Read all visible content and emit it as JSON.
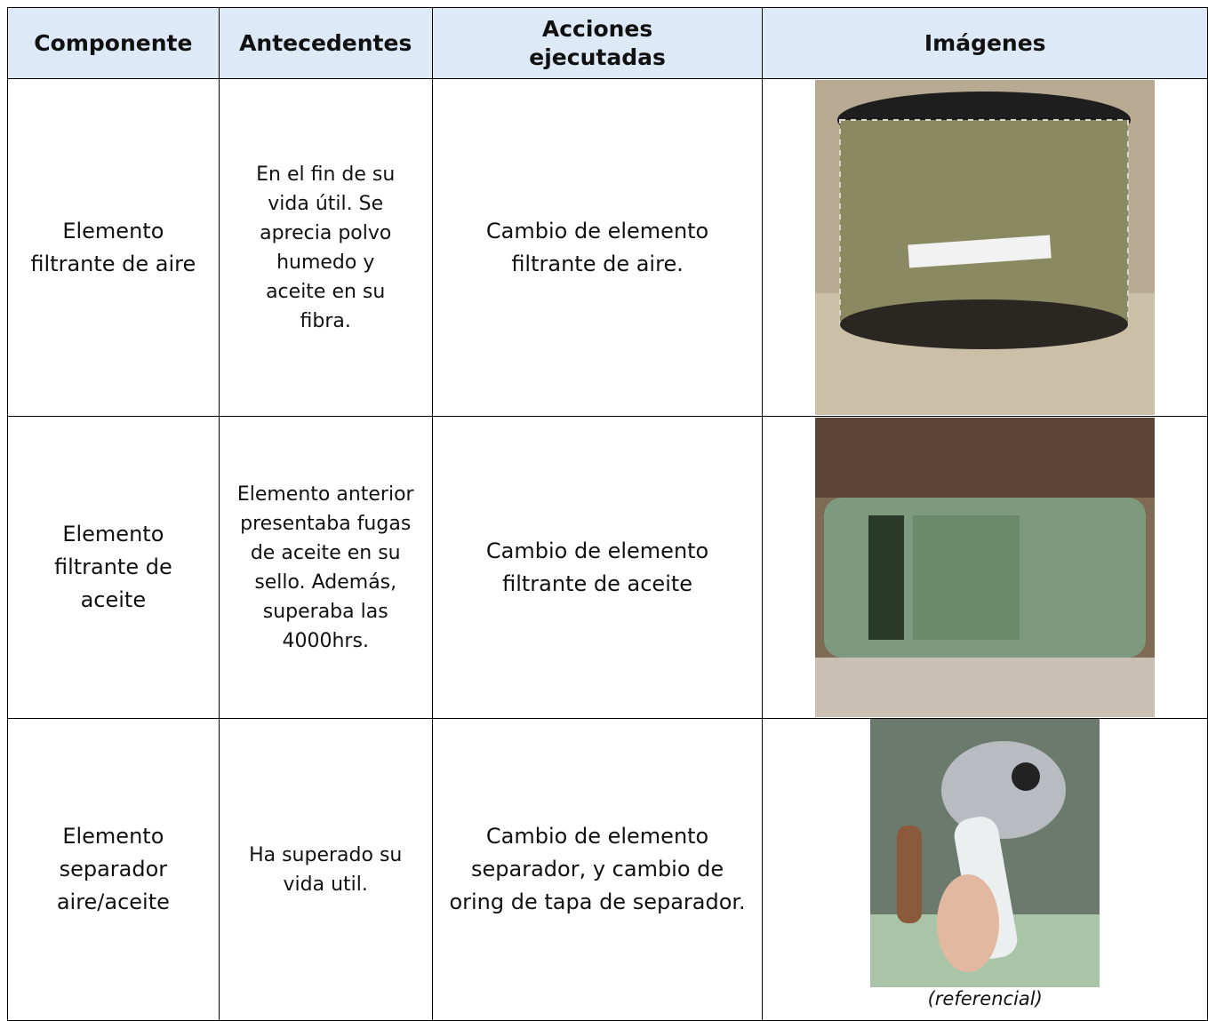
{
  "table": {
    "header": [
      "Componente",
      "Antecedentes",
      "Acciones ejecutadas",
      "Imágenes"
    ],
    "rows": [
      {
        "cells": [
          "Elemento filtrante de aire",
          "En el fin de su vida útil. Se aprecia polvo humedo y aceite en su fibra.",
          "Cambio de elemento filtrante de aire."
        ]
      },
      {
        "cells": [
          "Elemento filtrante de aceite",
          "Elemento anterior presentaba fugas de aceite en su sello. Además, superaba las 4000hrs.",
          "Cambio de elemento filtrante de aceite"
        ]
      },
      {
        "cells": [
          "Elemento separador aire/aceite",
          "Ha superado su vida util.",
          "Cambio de elemento separador, y cambio de oring de tapa de separador."
        ],
        "image_caption": "(referencial)"
      }
    ]
  }
}
